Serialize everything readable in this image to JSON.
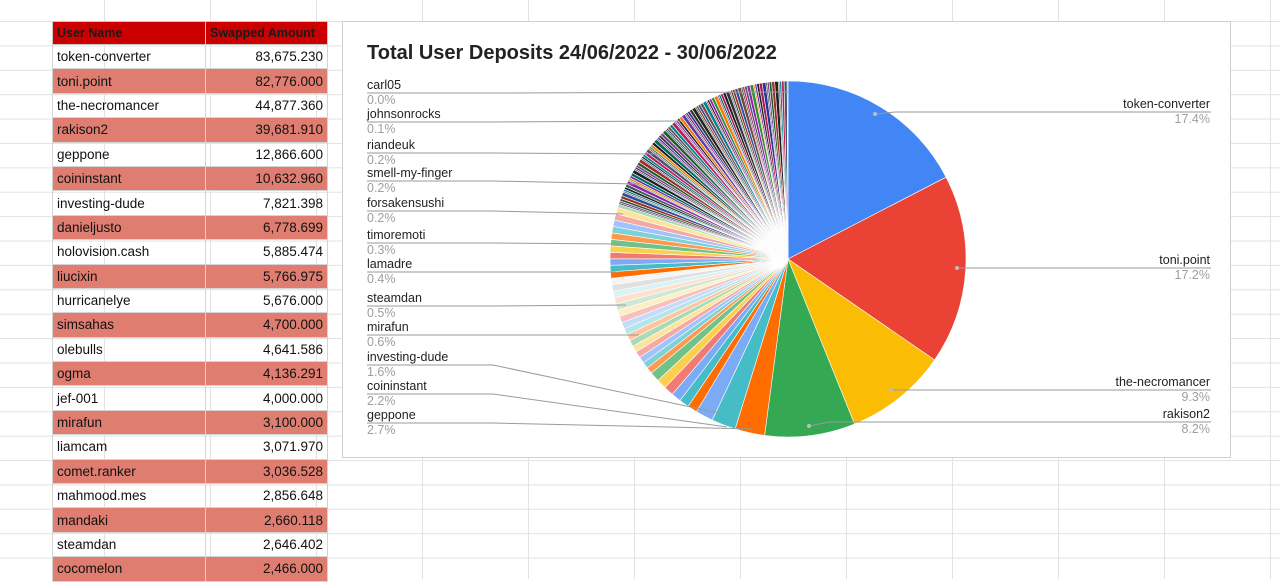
{
  "table": {
    "headers": [
      "User Name",
      "Swapped Amount"
    ],
    "rows": [
      [
        "token-converter",
        "83,675.230"
      ],
      [
        "toni.point",
        "82,776.000"
      ],
      [
        "the-necromancer",
        "44,877.360"
      ],
      [
        "rakison2",
        "39,681.910"
      ],
      [
        "geppone",
        "12,866.600"
      ],
      [
        "coininstant",
        "10,632.960"
      ],
      [
        "investing-dude",
        "7,821.398"
      ],
      [
        "danieljusto",
        "6,778.699"
      ],
      [
        "holovision.cash",
        "5,885.474"
      ],
      [
        "liucixin",
        "5,766.975"
      ],
      [
        "hurricanelye",
        "5,676.000"
      ],
      [
        "simsahas",
        "4,700.000"
      ],
      [
        "olebulls",
        "4,641.586"
      ],
      [
        "ogma",
        "4,136.291"
      ],
      [
        "jef-001",
        "4,000.000"
      ],
      [
        "mirafun",
        "3,100.000"
      ],
      [
        "liamcam",
        "3,071.970"
      ],
      [
        "comet.ranker",
        "3,036.528"
      ],
      [
        "mahmood.mes",
        "2,856.648"
      ],
      [
        "mandaki",
        "2,660.118"
      ],
      [
        "steamdan",
        "2,646.402"
      ],
      [
        "cocomelon",
        "2,466.000"
      ]
    ]
  },
  "colors": {
    "header_bg": "#cc0000",
    "alt_row_bg": "#e07d71"
  },
  "chart_data": {
    "type": "pie",
    "title": "Total User Deposits 24/06/2022 - 30/06/2022",
    "slices": [
      {
        "name": "token-converter",
        "value": 17.4,
        "label": "17.4%",
        "color": "#4285f4"
      },
      {
        "name": "toni.point",
        "value": 17.2,
        "label": "17.2%",
        "color": "#ea4335"
      },
      {
        "name": "the-necromancer",
        "value": 9.3,
        "label": "9.3%",
        "color": "#fbbc04"
      },
      {
        "name": "rakison2",
        "value": 8.2,
        "label": "8.2%",
        "color": "#34a853"
      },
      {
        "name": "geppone",
        "value": 2.7,
        "label": "2.7%",
        "color": "#ff6d01"
      },
      {
        "name": "coininstant",
        "value": 2.2,
        "label": "2.2%",
        "color": "#46bdc6"
      },
      {
        "name": "investing-dude",
        "value": 1.6,
        "label": "1.6%",
        "color": "#7baaf7"
      },
      {
        "name": "mirafun",
        "value": 0.6,
        "label": "0.6%"
      },
      {
        "name": "steamdan",
        "value": 0.5,
        "label": "0.5%"
      },
      {
        "name": "lamadre",
        "value": 0.4,
        "label": "0.4%"
      },
      {
        "name": "timoremoti",
        "value": 0.3,
        "label": "0.3%"
      },
      {
        "name": "forsakensushi",
        "value": 0.2,
        "label": "0.2%"
      },
      {
        "name": "smell-my-finger",
        "value": 0.2,
        "label": "0.2%"
      },
      {
        "name": "riandeuk",
        "value": 0.2,
        "label": "0.2%"
      },
      {
        "name": "johnsonrocks",
        "value": 0.1,
        "label": "0.1%"
      },
      {
        "name": "carl05",
        "value": 0.0,
        "label": "0.0%"
      }
    ],
    "labels_right": [
      "token-converter",
      "toni.point",
      "the-necromancer",
      "rakison2"
    ],
    "labels_left": [
      "carl05",
      "johnsonrocks",
      "riandeuk",
      "smell-my-finger",
      "forsakensushi",
      "timoremoti",
      "lamadre",
      "steamdan",
      "mirafun",
      "investing-dude",
      "coininstant",
      "geppone"
    ]
  }
}
